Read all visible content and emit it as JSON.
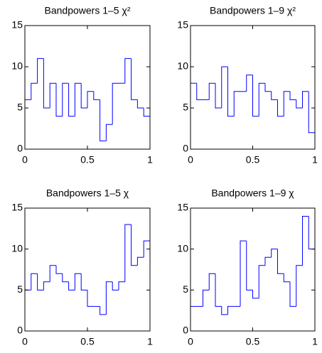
{
  "chart_data": [
    {
      "type": "histogram",
      "title": "Bandpowers 1–5 χ²",
      "color": "#0000ff",
      "bins": [
        0,
        0.05,
        0.1,
        0.15,
        0.2,
        0.25,
        0.3,
        0.35,
        0.4,
        0.45,
        0.5,
        0.55,
        0.6,
        0.65,
        0.7,
        0.75,
        0.8,
        0.85,
        0.9,
        0.95,
        1
      ],
      "values": [
        6,
        8,
        11,
        5,
        8,
        4,
        8,
        4,
        8,
        5,
        7,
        6,
        1,
        3,
        8,
        8,
        11,
        6,
        5,
        4
      ],
      "xlim": [
        0,
        1
      ],
      "xticks": [
        0,
        0.5,
        1
      ],
      "ylim": [
        0,
        15
      ],
      "yticks": [
        0,
        5,
        10,
        15
      ]
    },
    {
      "type": "histogram",
      "title": "Bandpowers 1–9 χ²",
      "color": "#0000ff",
      "bins": [
        0,
        0.05,
        0.1,
        0.15,
        0.2,
        0.25,
        0.3,
        0.35,
        0.4,
        0.45,
        0.5,
        0.55,
        0.6,
        0.65,
        0.7,
        0.75,
        0.8,
        0.85,
        0.9,
        0.95,
        1
      ],
      "values": [
        8,
        6,
        6,
        8,
        5,
        10,
        4,
        7,
        7,
        9,
        4,
        8,
        7,
        6,
        4,
        7,
        6,
        5,
        7,
        2
      ],
      "xlim": [
        0,
        1
      ],
      "xticks": [
        0,
        0.5,
        1
      ],
      "ylim": [
        0,
        15
      ],
      "yticks": [
        0,
        5,
        10,
        15
      ]
    },
    {
      "type": "histogram",
      "title": "Bandpowers 1–5 χ",
      "color": "#0000ff",
      "bins": [
        0,
        0.05,
        0.1,
        0.15,
        0.2,
        0.25,
        0.3,
        0.35,
        0.4,
        0.45,
        0.5,
        0.55,
        0.6,
        0.65,
        0.7,
        0.75,
        0.8,
        0.85,
        0.9,
        0.95,
        1
      ],
      "values": [
        5,
        7,
        5,
        6,
        8,
        7,
        6,
        5,
        7,
        5,
        3,
        3,
        2,
        6,
        5,
        6,
        13,
        8,
        9,
        11
      ],
      "xlim": [
        0,
        1
      ],
      "xticks": [
        0,
        0.5,
        1
      ],
      "ylim": [
        0,
        15
      ],
      "yticks": [
        0,
        5,
        10,
        15
      ]
    },
    {
      "type": "histogram",
      "title": "Bandpowers 1–9 χ",
      "color": "#0000ff",
      "bins": [
        0,
        0.05,
        0.1,
        0.15,
        0.2,
        0.25,
        0.3,
        0.35,
        0.4,
        0.45,
        0.5,
        0.55,
        0.6,
        0.65,
        0.7,
        0.75,
        0.8,
        0.85,
        0.9,
        0.95,
        1
      ],
      "values": [
        3,
        3,
        5,
        7,
        3,
        2,
        3,
        3,
        11,
        5,
        4,
        8,
        9,
        10,
        7,
        6,
        3,
        8,
        14,
        10
      ],
      "xlim": [
        0,
        1
      ],
      "xticks": [
        0,
        0.5,
        1
      ],
      "ylim": [
        0,
        15
      ],
      "yticks": [
        0,
        5,
        10,
        15
      ]
    }
  ]
}
